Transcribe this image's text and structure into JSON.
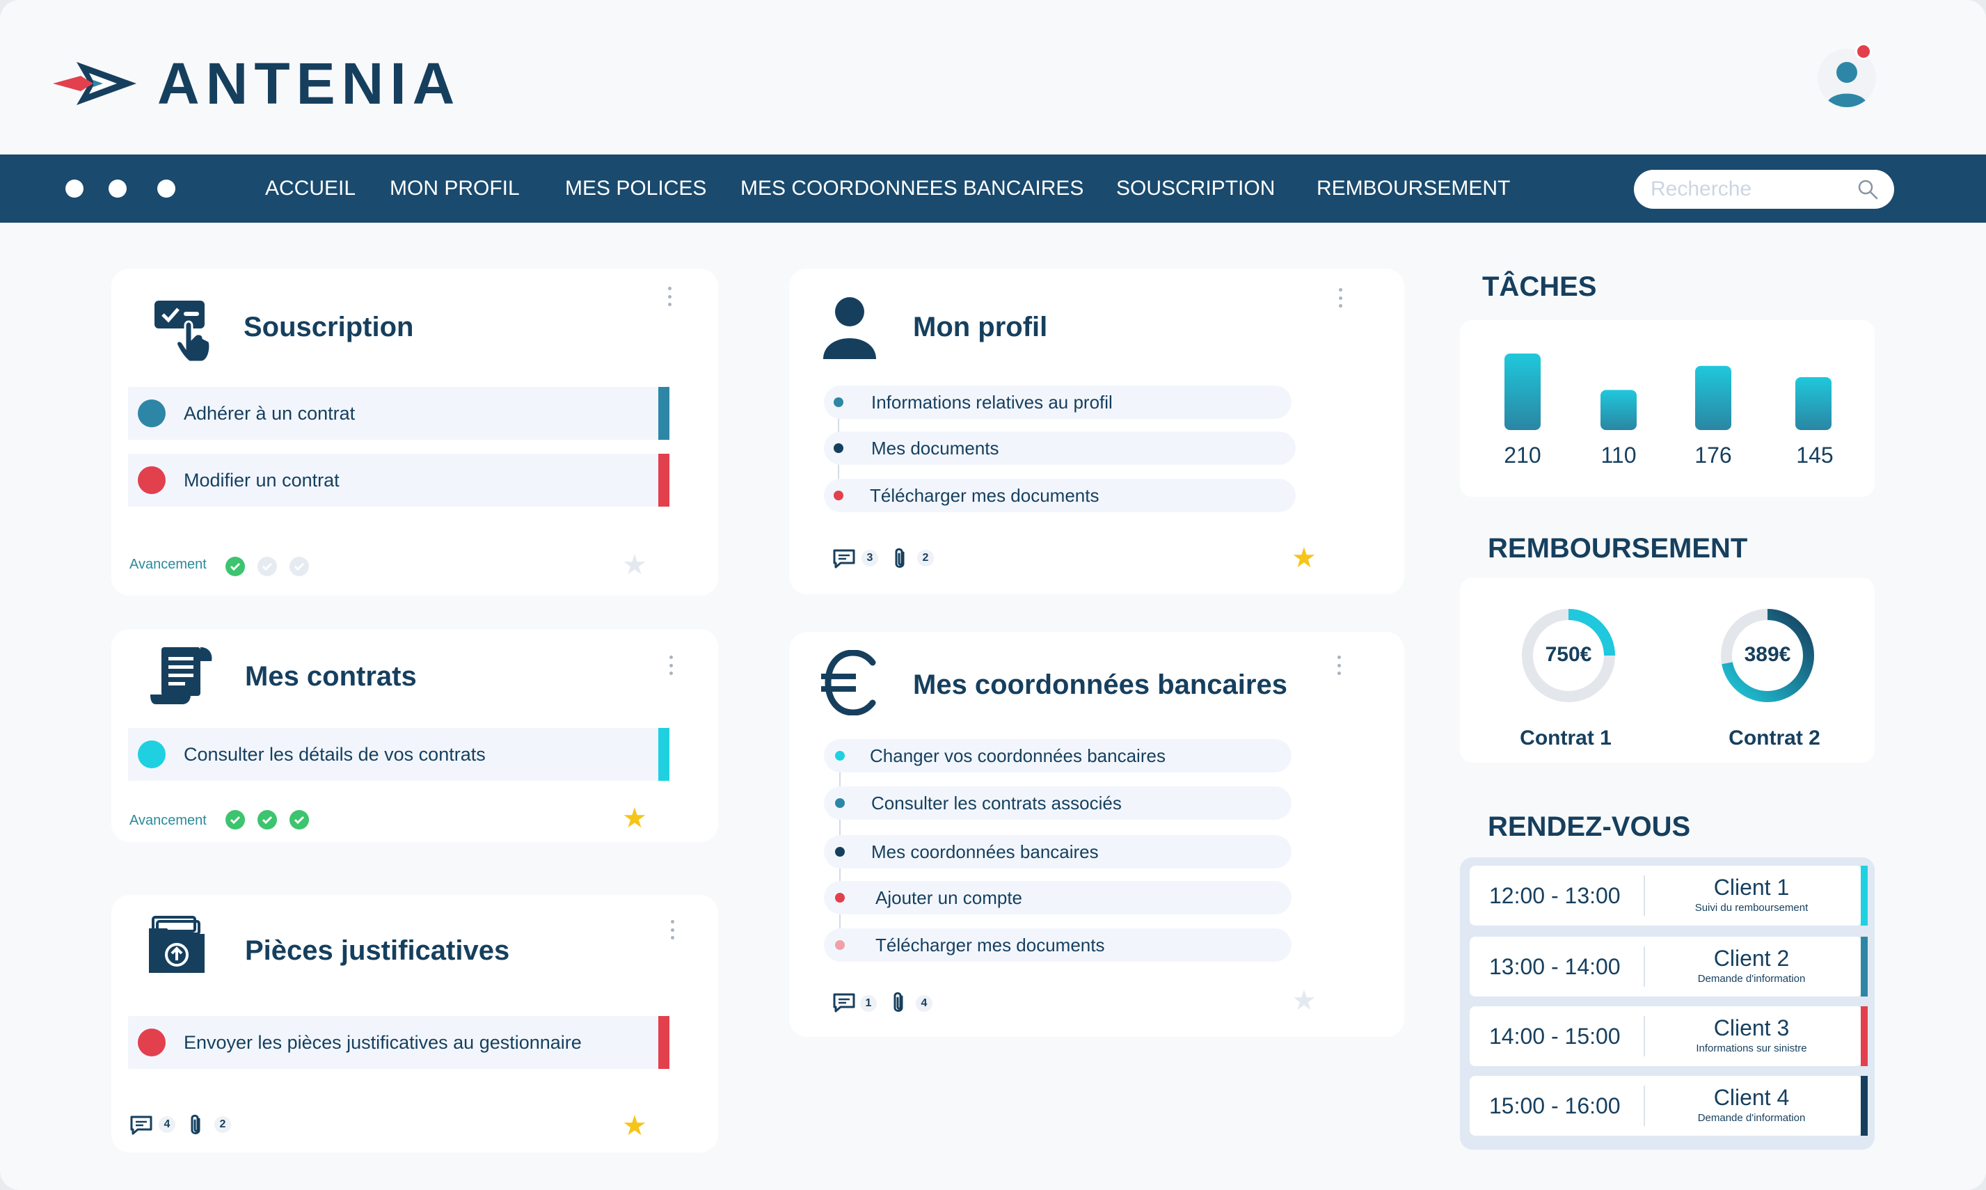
{
  "brand": {
    "name": "ANTENIA"
  },
  "nav": {
    "items": [
      "ACCUEIL",
      "MON PROFIL",
      "MES POLICES",
      "MES COORDONNEES BANCAIRES",
      "SOUSCRIPTION",
      "REMBOURSEMENT"
    ],
    "search_placeholder": "Recherche"
  },
  "cards": {
    "souscription": {
      "title": "Souscription",
      "actions": [
        {
          "label": "Adhérer à un contrat",
          "color": "#2e86a6"
        },
        {
          "label": "Modifier un contrat",
          "color": "#e2404d"
        }
      ],
      "progress_label": "Avancement",
      "progress_steps_done": 1,
      "progress_steps_total": 3,
      "starred": false
    },
    "contrats": {
      "title": "Mes contrats",
      "actions": [
        {
          "label": "Consulter les détails de vos contrats",
          "color": "#1fd1e0"
        }
      ],
      "progress_label": "Avancement",
      "progress_steps_done": 3,
      "progress_steps_total": 3,
      "starred": true
    },
    "pieces": {
      "title": "Pièces justificatives",
      "actions": [
        {
          "label": "Envoyer les pièces justificatives au gestionnaire",
          "color": "#e2404d"
        }
      ],
      "comments": "4",
      "attachments": "2",
      "starred": true
    },
    "profil": {
      "title": "Mon profil",
      "items": [
        {
          "label": "Informations relatives au profil",
          "color": "#2e86a6"
        },
        {
          "label": "Mes documents",
          "color": "#163f5e"
        },
        {
          "label": "Télécharger mes documents",
          "color": "#e2404d"
        }
      ],
      "comments": "3",
      "attachments": "2",
      "starred": true
    },
    "bancaires": {
      "title": "Mes coordonnées bancaires",
      "items": [
        {
          "label": "Changer vos coordonnées bancaires",
          "color": "#1fd1e0"
        },
        {
          "label": "Consulter les contrats associés",
          "color": "#2e86a6"
        },
        {
          "label": "Mes coordonnées bancaires",
          "color": "#163f5e"
        },
        {
          "label": "Ajouter un compte",
          "color": "#e2404d"
        },
        {
          "label": "Télécharger mes documents",
          "color": "#f0a0a6"
        }
      ],
      "comments": "1",
      "attachments": "4",
      "starred": false
    }
  },
  "taches": {
    "title": "TÂCHES",
    "chart_data": {
      "type": "bar",
      "categories": [
        "",
        "",
        "",
        ""
      ],
      "values": [
        210,
        110,
        176,
        145
      ],
      "labels": [
        "210",
        "110",
        "176",
        "145"
      ]
    }
  },
  "remboursement": {
    "title": "REMBOURSEMENT",
    "items": [
      {
        "amount": "750€",
        "label": "Contrat 1",
        "fraction": 0.25
      },
      {
        "amount": "389€",
        "label": "Contrat 2",
        "fraction": 0.72
      }
    ]
  },
  "rendezvous": {
    "title": "RENDEZ-VOUS",
    "items": [
      {
        "time": "12:00 - 13:00",
        "client": "Client 1",
        "note": "Suivi du remboursement",
        "color": "#1fd1e0"
      },
      {
        "time": "13:00 - 14:00",
        "client": "Client 2",
        "note": "Demande d'information",
        "color": "#2e86a6"
      },
      {
        "time": "14:00 - 15:00",
        "client": "Client 3",
        "note": "Informations sur sinistre",
        "color": "#e2404d"
      },
      {
        "time": "15:00 - 16:00",
        "client": "Client 4",
        "note": "Demande d'information",
        "color": "#163f5e"
      }
    ]
  },
  "colors": {
    "primary": "#163f5e",
    "nav": "#1a4a6d",
    "teal": "#2e86a6",
    "cyan": "#1fd1e0",
    "red": "#e2404d",
    "star_active": "#f5c518",
    "check_done": "#3cc46e"
  }
}
